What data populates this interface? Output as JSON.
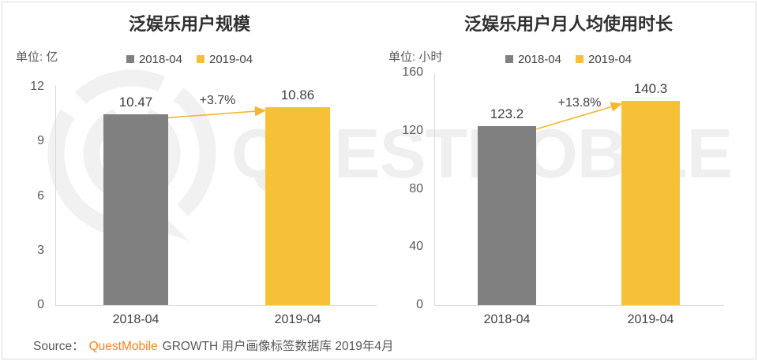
{
  "colors": {
    "bar_gray": "#808080",
    "bar_yellow": "#F7C137",
    "arrow_yellow": "#F2B82F",
    "axis_line": "#d9d9d9",
    "watermark": "#efefef",
    "brand_orange": "#F5821F"
  },
  "watermark": {
    "text": "QUESTMOBILE",
    "logo": "questmobile-bubble-q-logo"
  },
  "chart_data": [
    {
      "type": "bar",
      "title": "泛娱乐用户规模",
      "unit_label": "单位: 亿",
      "categories": [
        "2018-04",
        "2019-04"
      ],
      "values": [
        10.47,
        10.86
      ],
      "value_labels": [
        "10.47",
        "10.86"
      ],
      "growth_label": "+3.7%",
      "yticks": [
        0,
        3,
        6,
        9,
        12
      ],
      "ylim": [
        0,
        12
      ],
      "legend": [
        "2018-04",
        "2019-04"
      ],
      "legend_position": "top",
      "grid": false,
      "series_colors": [
        "#808080",
        "#F7C137"
      ]
    },
    {
      "type": "bar",
      "title": "泛娱乐用户月人均使用时长",
      "unit_label": "单位: 小时",
      "categories": [
        "2018-04",
        "2019-04"
      ],
      "values": [
        123.2,
        140.3
      ],
      "value_labels": [
        "123.2",
        "140.3"
      ],
      "growth_label": "+13.8%",
      "yticks": [
        0,
        40,
        80,
        120,
        160
      ],
      "ylim": [
        0,
        160
      ],
      "legend": [
        "2018-04",
        "2019-04"
      ],
      "legend_position": "top",
      "grid": false,
      "series_colors": [
        "#808080",
        "#F7C137"
      ]
    }
  ],
  "source": {
    "prefix": "Source：",
    "brand": "QuestMobile",
    "suffix": "GROWTH 用户画像标签数据库 2019年4月"
  }
}
